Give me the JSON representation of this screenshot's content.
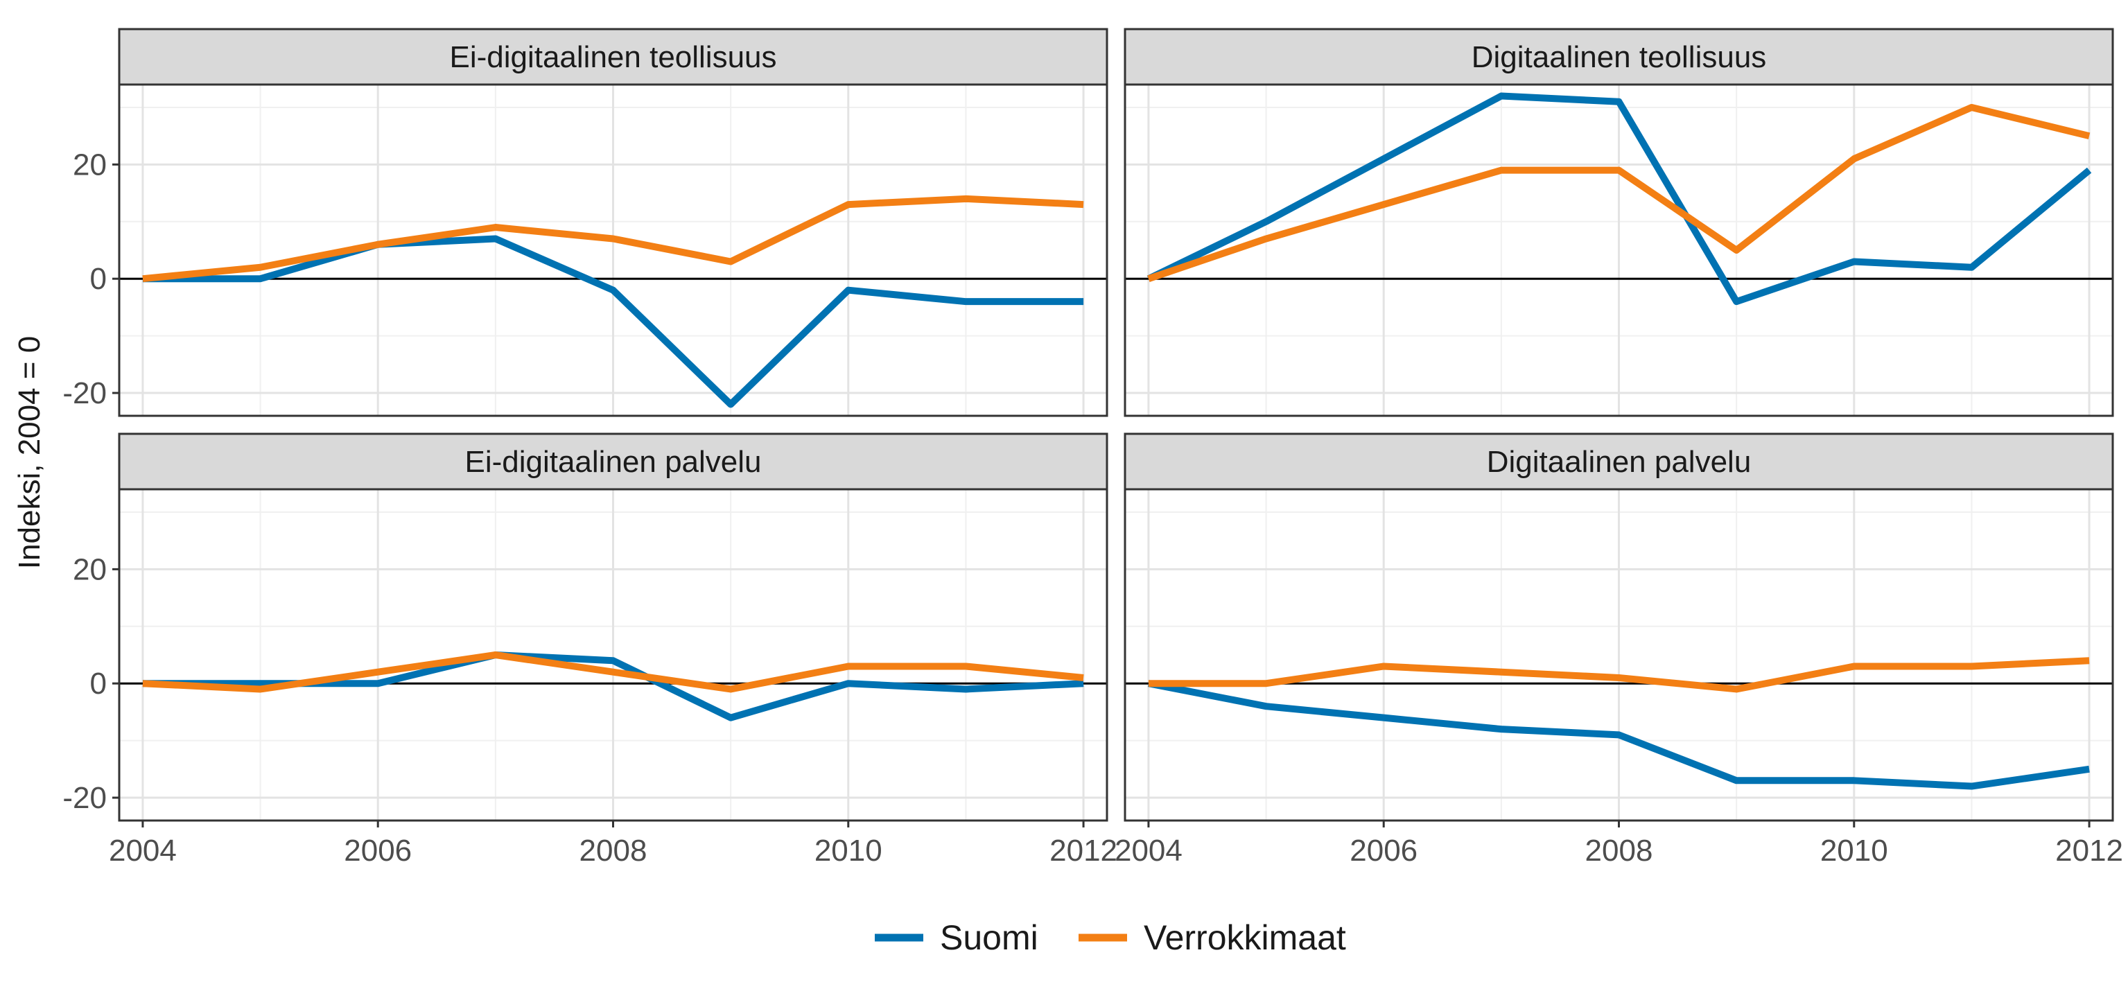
{
  "chart_data": {
    "type": "line",
    "ylabel": "Indeksi, 2004 = 0",
    "x": [
      2004,
      2005,
      2006,
      2007,
      2008,
      2009,
      2010,
      2011,
      2012
    ],
    "xticks": [
      "2004",
      "2006",
      "2008",
      "2010",
      "2012"
    ],
    "yticks": [
      "20",
      "0",
      "-20"
    ],
    "ylim": [
      -24,
      34
    ],
    "xlim": [
      2003.8,
      2012.2
    ],
    "grid": true,
    "reference_line": 0,
    "legend_position": "bottom",
    "series_colors": {
      "Suomi": "#0072B2",
      "Verrokkimaat": "#F37F14"
    },
    "legend": [
      {
        "name": "Suomi",
        "color": "#0072B2"
      },
      {
        "name": "Verrokkimaat",
        "color": "#F37F14"
      }
    ],
    "panels": [
      {
        "title": "Ei-digitaalinen teollisuus",
        "series": [
          {
            "name": "Suomi",
            "values": [
              0,
              0,
              6,
              7,
              -2,
              -22,
              -2,
              -4,
              -4
            ]
          },
          {
            "name": "Verrokkimaat",
            "values": [
              0,
              2,
              6,
              9,
              7,
              3,
              13,
              14,
              13
            ]
          }
        ]
      },
      {
        "title": "Digitaalinen teollisuus",
        "series": [
          {
            "name": "Suomi",
            "values": [
              0,
              10,
              21,
              32,
              31,
              -4,
              3,
              2,
              19
            ]
          },
          {
            "name": "Verrokkimaat",
            "values": [
              0,
              7,
              13,
              19,
              19,
              5,
              21,
              30,
              25
            ]
          }
        ]
      },
      {
        "title": "Ei-digitaalinen palvelu",
        "series": [
          {
            "name": "Suomi",
            "values": [
              0,
              0,
              0,
              5,
              4,
              -6,
              0,
              -1,
              0
            ]
          },
          {
            "name": "Verrokkimaat",
            "values": [
              0,
              -1,
              2,
              5,
              2,
              -1,
              3,
              3,
              1
            ]
          }
        ]
      },
      {
        "title": "Digitaalinen palvelu",
        "series": [
          {
            "name": "Suomi",
            "values": [
              0,
              -4,
              -6,
              -8,
              -9,
              -17,
              -17,
              -18,
              -15
            ]
          },
          {
            "name": "Verrokkimaat",
            "values": [
              0,
              0,
              3,
              2,
              1,
              -1,
              3,
              3,
              4
            ]
          }
        ]
      }
    ]
  }
}
